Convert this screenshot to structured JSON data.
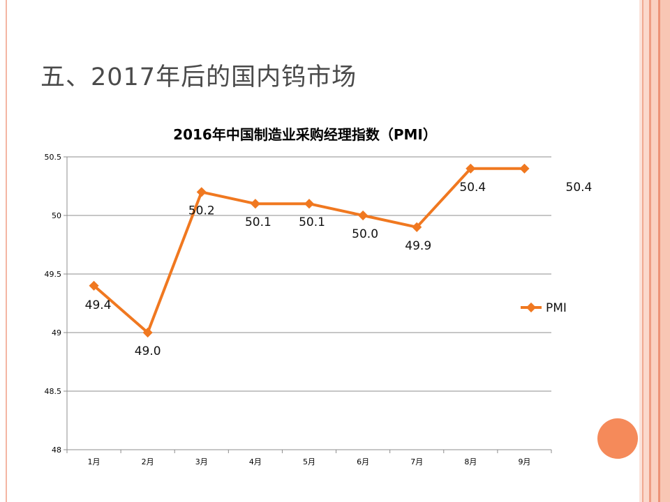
{
  "slide": {
    "title": "五、2017年后的国内钨市场"
  },
  "colors": {
    "series": "#f07820",
    "accent_circle": "#f58a5a",
    "stripe": "#f0a890"
  },
  "chart_data": {
    "type": "line",
    "title": "2016年中国制造业采购经理指数（PMI）",
    "categories": [
      "1月",
      "2月",
      "3月",
      "4月",
      "5月",
      "6月",
      "7月",
      "8月",
      "9月"
    ],
    "series": [
      {
        "name": "PMI",
        "values": [
          49.4,
          49.0,
          50.2,
          50.1,
          50.1,
          50.0,
          49.9,
          50.4,
          50.4
        ],
        "data_labels": [
          "49.4",
          "49.0",
          "50.2",
          "50.1",
          "50.1",
          "50.0",
          "49.9",
          "50.4",
          "50.4"
        ],
        "color": "#f07820",
        "marker": "diamond"
      }
    ],
    "ylim": [
      48,
      50.5
    ],
    "yticks": [
      "48",
      "48.5",
      "49",
      "49.5",
      "50",
      "50.5"
    ],
    "grid": "horizontal",
    "legend": "right"
  }
}
